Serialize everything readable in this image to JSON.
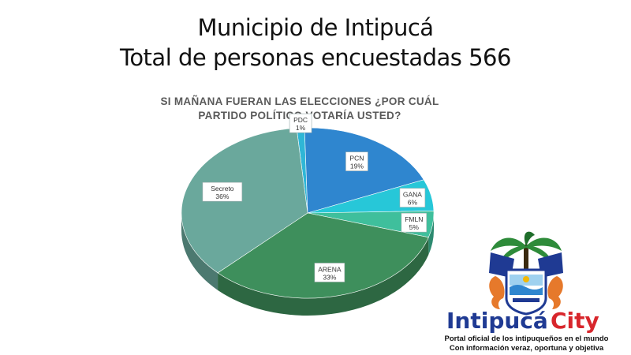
{
  "header": {
    "title_line1": "Municipio de Intipucá",
    "title_line2": "Total de personas encuestadas 566"
  },
  "chart_data": {
    "type": "pie",
    "subtitle_line1": "SI MAÑANA FUERAN LAS ELECCIONES ¿POR CUÁL",
    "subtitle_line2": "PARTIDO POLÍTICO VOTARÍA USTED?",
    "categories": [
      "PDC",
      "PCN",
      "GANA",
      "FMLN",
      "ARENA",
      "Secreto"
    ],
    "values": [
      1,
      19,
      6,
      5,
      33,
      36
    ],
    "value_suffix": "%",
    "colors": [
      "#2fb6d6",
      "#2f86cf",
      "#27c7d8",
      "#3fbf9c",
      "#3e8f5c",
      "#6aa89c"
    ],
    "style": "3d-tilted",
    "legend": "none (data labels on slices)"
  },
  "logo": {
    "brand_left": "Intipucá",
    "brand_right": "City",
    "tagline_line1": "Portal oficial de los intipuqueños en el mundo",
    "tagline_line2": "Con información veraz, oportuna y objetiva",
    "colors": {
      "blue": "#1f3a93",
      "red": "#d8262c",
      "orange": "#e6792b",
      "green": "#2e8b3a"
    }
  }
}
